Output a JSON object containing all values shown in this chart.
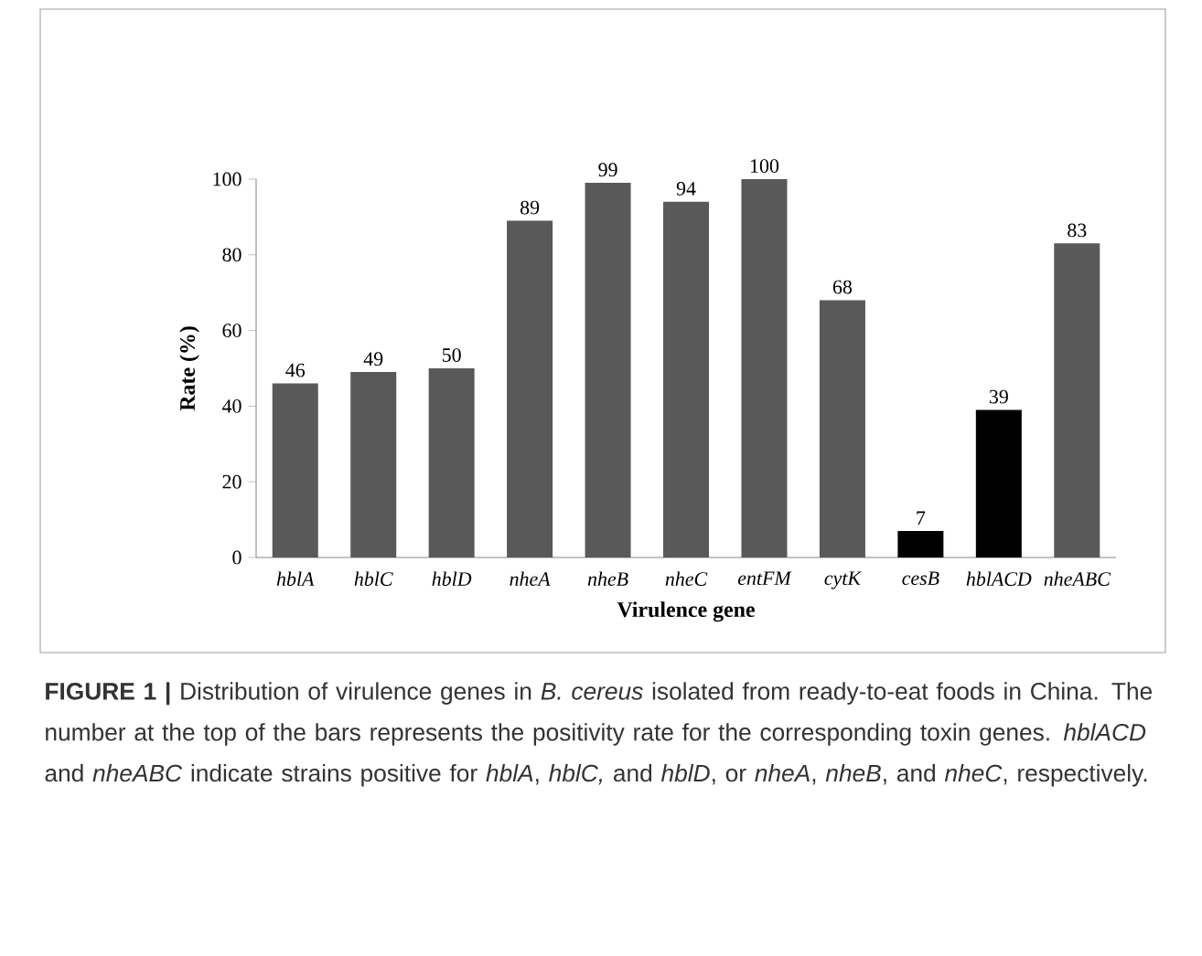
{
  "chart_data": {
    "type": "bar",
    "categories": [
      "hblA",
      "hblC",
      "hblD",
      "nheA",
      "nheB",
      "nheC",
      "entFM",
      "cytK",
      "cesB",
      "hblACD",
      "nheABC"
    ],
    "values": [
      46,
      49,
      50,
      89,
      99,
      94,
      100,
      68,
      7,
      39,
      83
    ],
    "colors": [
      "#595959",
      "#595959",
      "#595959",
      "#595959",
      "#595959",
      "#595959",
      "#595959",
      "#595959",
      "#000000",
      "#000000",
      "#595959"
    ],
    "xlabel": "Virulence gene",
    "ylabel": "Rate (%)",
    "ylim": [
      0,
      100
    ],
    "yticks": [
      0,
      20,
      40,
      60,
      80,
      100
    ],
    "data_labels": true,
    "annotations": [
      "**FIGURE 1 |** Distribution of virulence genes in *B. cereus* isolated from ready-to-eat foods in China. The number at the top of the bars represents the positivity rate for the corresponding toxin genes. *hblACD* and *nheABC* indicate strains positive for *hblA*, *hblC,* and *hblD*, or *nheA*, *nheB*, and *nheC*, respectively."
    ]
  }
}
